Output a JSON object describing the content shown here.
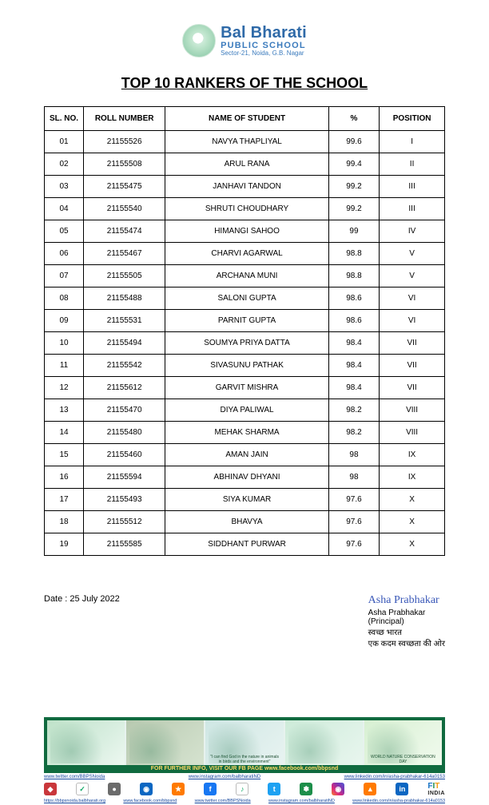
{
  "header": {
    "school_line1": "Bal Bharati",
    "school_line2": "PUBLIC  SCHOOL",
    "address": "Sector-21, Noida, G.B. Nagar"
  },
  "title": "TOP 10 RANKERS OF THE SCHOOL",
  "columns": {
    "sl": "SL. NO.",
    "roll": "ROLL NUMBER",
    "name": "NAME OF STUDENT",
    "pct": "%",
    "pos": "POSITION"
  },
  "rows": [
    {
      "sl": "01",
      "roll": "21155526",
      "name": "NAVYA THAPLIYAL",
      "pct": "99.6",
      "pos": "I"
    },
    {
      "sl": "02",
      "roll": "21155508",
      "name": "ARUL RANA",
      "pct": "99.4",
      "pos": "II"
    },
    {
      "sl": "03",
      "roll": "21155475",
      "name": "JANHAVI TANDON",
      "pct": "99.2",
      "pos": "III"
    },
    {
      "sl": "04",
      "roll": "21155540",
      "name": "SHRUTI CHOUDHARY",
      "pct": "99.2",
      "pos": "III"
    },
    {
      "sl": "05",
      "roll": "21155474",
      "name": "HIMANGI SAHOO",
      "pct": "99",
      "pos": "IV"
    },
    {
      "sl": "06",
      "roll": "21155467",
      "name": "CHARVI AGARWAL",
      "pct": "98.8",
      "pos": "V"
    },
    {
      "sl": "07",
      "roll": "21155505",
      "name": "ARCHANA MUNI",
      "pct": "98.8",
      "pos": "V"
    },
    {
      "sl": "08",
      "roll": "21155488",
      "name": "SALONI GUPTA",
      "pct": "98.6",
      "pos": "VI"
    },
    {
      "sl": "09",
      "roll": "21155531",
      "name": "PARNIT GUPTA",
      "pct": "98.6",
      "pos": "VI"
    },
    {
      "sl": "10",
      "roll": "21155494",
      "name": "SOUMYA PRIYA DATTA",
      "pct": "98.4",
      "pos": "VII"
    },
    {
      "sl": "11",
      "roll": "21155542",
      "name": "SIVASUNU PATHAK",
      "pct": "98.4",
      "pos": "VII"
    },
    {
      "sl": "12",
      "roll": "21155612",
      "name": "GARVIT MISHRA",
      "pct": "98.4",
      "pos": "VII"
    },
    {
      "sl": "13",
      "roll": "21155470",
      "name": "DIYA PALIWAL",
      "pct": "98.2",
      "pos": "VIII"
    },
    {
      "sl": "14",
      "roll": "21155480",
      "name": "MEHAK SHARMA",
      "pct": "98.2",
      "pos": "VIII"
    },
    {
      "sl": "15",
      "roll": "21155460",
      "name": "AMAN JAIN",
      "pct": "98",
      "pos": "IX"
    },
    {
      "sl": "16",
      "roll": "21155594",
      "name": "ABHINAV DHYANI",
      "pct": "98",
      "pos": "IX"
    },
    {
      "sl": "17",
      "roll": "21155493",
      "name": "SIYA KUMAR",
      "pct": "97.6",
      "pos": "X"
    },
    {
      "sl": "18",
      "roll": "21155512",
      "name": "BHAVYA",
      "pct": "97.6",
      "pos": "X"
    },
    {
      "sl": "19",
      "roll": "21155585",
      "name": "SIDDHANT PURWAR",
      "pct": "97.6",
      "pos": "X"
    }
  ],
  "date_label": "Date :  25 July 2022",
  "sig": {
    "signature_text": "Asha Prabhakar",
    "name": "Asha Prabhakar",
    "role": "(Principal)",
    "hindi1": "स्वच्छ भारत",
    "hindi2": "एक कदम स्वच्छता की ओर"
  },
  "banner": {
    "cap5_line1": "WORLD NATURE CONSERVATION DAY",
    "cap3_line1": "\"I can find God in the nature in animals in birds and the environment\""
  },
  "fb_strip": "FOR FURTHER INFO, VISIT OUR FB PAGE www.facebook.com/bbpsnd",
  "links": {
    "twitter": "www.twitter.com/BBPSNoida",
    "instagram": "www.instagram.com/balbharatiND",
    "linkedin": "www.linkedin.com/in/asha-prabhakar-614a0153"
  },
  "bottom_links": {
    "l1": "https://bbpsnoida.balbharati.org",
    "l2": "www.facebook.com/bbpsnd",
    "l3": "www.twitter.com/BBPSNoida",
    "l4": "www.instagram.com/balbharatiND",
    "l5": "www.linkedin.com/in/asha-prabhakar-614a0153"
  },
  "fit": {
    "f": "F",
    "i": "I",
    "t": "T",
    "india": "INDIA"
  }
}
